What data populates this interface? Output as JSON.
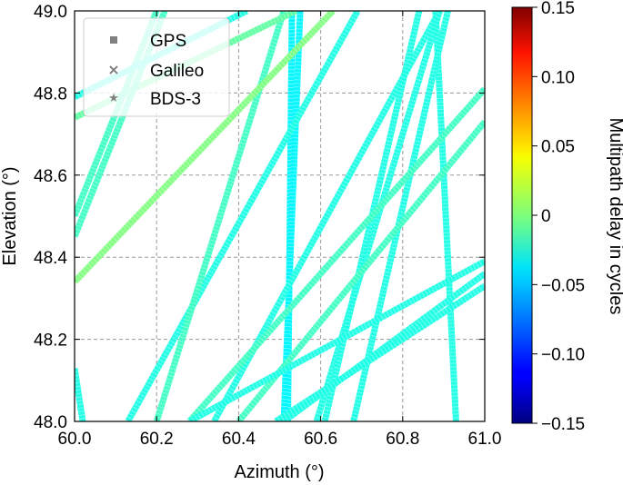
{
  "chart_data": {
    "type": "scatter",
    "xlabel": "Azimuth (°)",
    "ylabel": "Elevation (°)",
    "xlim": [
      60.0,
      61.0
    ],
    "ylim": [
      48.0,
      49.0
    ],
    "x_ticks": [
      "60.0",
      "60.2",
      "60.4",
      "60.6",
      "60.8",
      "61.0"
    ],
    "y_ticks": [
      "48.0",
      "48.2",
      "48.4",
      "48.6",
      "48.8",
      "49.0"
    ],
    "grid": true,
    "legend_placement": "top-left",
    "legend": [
      {
        "label": "GPS",
        "marker": "square"
      },
      {
        "label": "Galileo",
        "marker": "x"
      },
      {
        "label": "BDS-3",
        "marker": "star"
      }
    ],
    "colorbar": {
      "label": "Multipath delay in cycles",
      "range": [
        -0.15,
        0.15
      ],
      "ticks": [
        "0.15",
        "0.10",
        "0.05",
        "0",
        "−0.05",
        "−0.10",
        "−0.15"
      ],
      "colormap": "jet"
    },
    "tracks": [
      {
        "x": [
          60.53,
          60.52
        ],
        "y": [
          49.0,
          48.0
        ],
        "delay": -0.04
      },
      {
        "x": [
          60.51,
          60.55
        ],
        "y": [
          48.0,
          49.0
        ],
        "delay": -0.04
      },
      {
        "x": [
          60.88,
          60.93
        ],
        "y": [
          49.0,
          48.0
        ],
        "delay": -0.03
      },
      {
        "x": [
          60.59,
          60.89
        ],
        "y": [
          48.0,
          49.0
        ],
        "delay": -0.03
      },
      {
        "x": [
          60.68,
          60.91
        ],
        "y": [
          48.0,
          49.0
        ],
        "delay": -0.03
      },
      {
        "x": [
          60.61,
          60.84
        ],
        "y": [
          48.0,
          49.0
        ],
        "delay": -0.03
      },
      {
        "x": [
          60.34,
          60.89
        ],
        "y": [
          48.0,
          49.0
        ],
        "delay": -0.03
      },
      {
        "x": [
          60.13,
          60.69
        ],
        "y": [
          48.0,
          49.0
        ],
        "delay": -0.03
      },
      {
        "x": [
          60.2,
          60.51
        ],
        "y": [
          48.0,
          49.0
        ],
        "delay": -0.02
      },
      {
        "x": [
          60.28,
          61.0
        ],
        "y": [
          48.0,
          48.81
        ],
        "delay": -0.02
      },
      {
        "x": [
          60.4,
          61.0
        ],
        "y": [
          48.0,
          48.73
        ],
        "delay": -0.02
      },
      {
        "x": [
          60.28,
          61.0
        ],
        "y": [
          48.0,
          48.39
        ],
        "delay": -0.03
      },
      {
        "x": [
          60.51,
          61.0
        ],
        "y": [
          48.0,
          48.36
        ],
        "delay": -0.03
      },
      {
        "x": [
          60.49,
          61.0
        ],
        "y": [
          48.0,
          48.33
        ],
        "delay": -0.03
      },
      {
        "x": [
          60.0,
          60.63
        ],
        "y": [
          48.34,
          49.0
        ],
        "delay": 0.0
      },
      {
        "x": [
          60.0,
          60.54
        ],
        "y": [
          48.74,
          49.0
        ],
        "delay": -0.01
      },
      {
        "x": [
          60.0,
          60.22
        ],
        "y": [
          48.45,
          49.0
        ],
        "delay": -0.02
      },
      {
        "x": [
          60.0,
          60.2
        ],
        "y": [
          48.5,
          49.0
        ],
        "delay": -0.02
      },
      {
        "x": [
          60.0,
          60.42
        ],
        "y": [
          48.79,
          49.0
        ],
        "delay": -0.03
      },
      {
        "x": [
          60.0,
          60.02
        ],
        "y": [
          48.13,
          48.0
        ],
        "delay": -0.03
      }
    ]
  }
}
